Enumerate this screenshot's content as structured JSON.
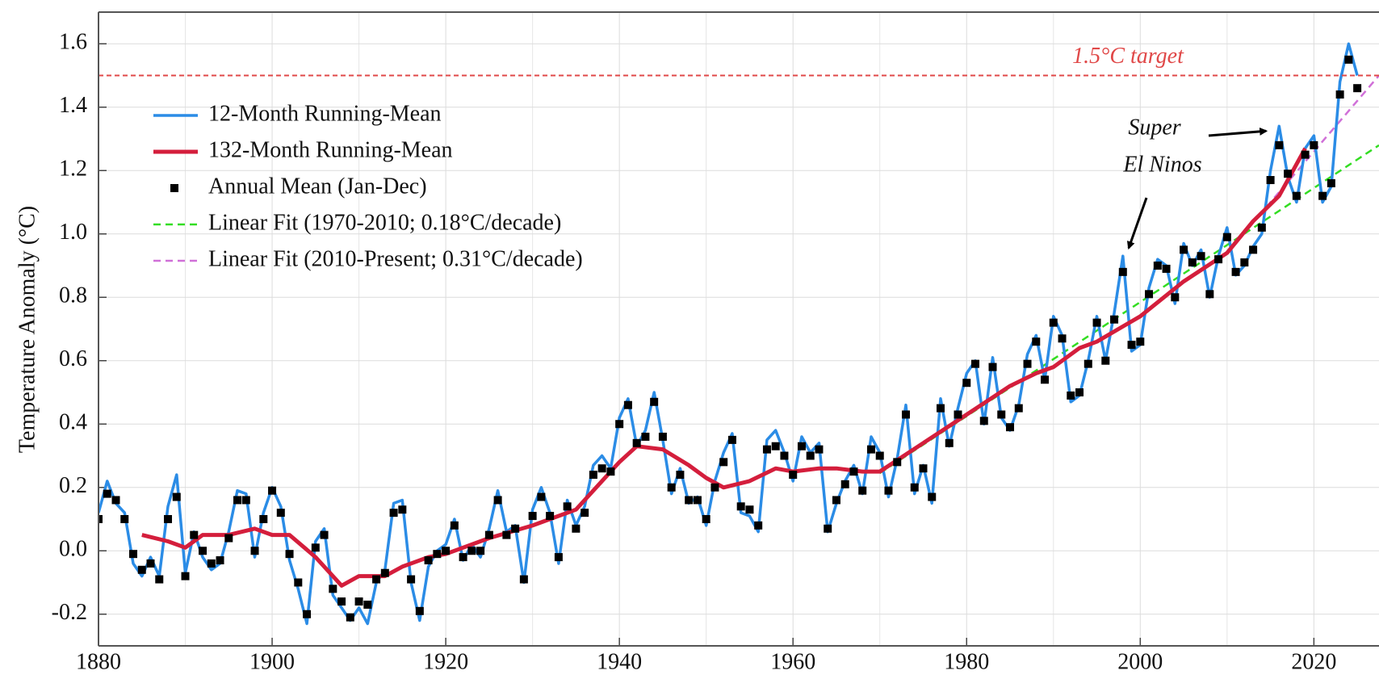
{
  "chart_data": {
    "type": "line",
    "y_label": "Temperature Anomaly (°C)",
    "xlim": [
      1880,
      2027.5
    ],
    "ylim": [
      -0.3,
      1.7
    ],
    "xticks": [
      1880,
      1900,
      1920,
      1940,
      1960,
      1980,
      2000,
      2020
    ],
    "x_minor_ticks": [
      1890,
      1910,
      1930,
      1950,
      1970,
      1990,
      2010
    ],
    "yticks": [
      -0.2,
      {
        "value": 0,
        "label": "0.0"
      },
      0.2,
      0.4,
      0.6,
      0.8,
      {
        "value": 1,
        "label": "1.0"
      },
      1.2,
      1.4,
      1.6
    ],
    "grid": true,
    "x": [
      1880,
      1881,
      1882,
      1883,
      1884,
      1885,
      1886,
      1887,
      1888,
      1889,
      1890,
      1891,
      1892,
      1893,
      1894,
      1895,
      1896,
      1897,
      1898,
      1899,
      1900,
      1901,
      1902,
      1903,
      1904,
      1905,
      1906,
      1907,
      1908,
      1909,
      1910,
      1911,
      1912,
      1913,
      1914,
      1915,
      1916,
      1917,
      1918,
      1919,
      1920,
      1921,
      1922,
      1923,
      1924,
      1925,
      1926,
      1927,
      1928,
      1929,
      1930,
      1931,
      1932,
      1933,
      1934,
      1935,
      1936,
      1937,
      1938,
      1939,
      1940,
      1941,
      1942,
      1943,
      1944,
      1945,
      1946,
      1947,
      1948,
      1949,
      1950,
      1951,
      1952,
      1953,
      1954,
      1955,
      1956,
      1957,
      1958,
      1959,
      1960,
      1961,
      1962,
      1963,
      1964,
      1965,
      1966,
      1967,
      1968,
      1969,
      1970,
      1971,
      1972,
      1973,
      1974,
      1975,
      1976,
      1977,
      1978,
      1979,
      1980,
      1981,
      1982,
      1983,
      1984,
      1985,
      1986,
      1987,
      1988,
      1989,
      1990,
      1991,
      1992,
      1993,
      1994,
      1995,
      1996,
      1997,
      1998,
      1999,
      2000,
      2001,
      2002,
      2003,
      2004,
      2005,
      2006,
      2007,
      2008,
      2009,
      2010,
      2011,
      2012,
      2013,
      2014,
      2015,
      2016,
      2017,
      2018,
      2019,
      2020,
      2021,
      2022,
      2023,
      2024,
      2025
    ],
    "series": [
      {
        "name": "12-Month Running-Mean",
        "style": "line",
        "color": "#2b8ce6",
        "values": [
          0.12,
          0.22,
          0.15,
          0.12,
          -0.04,
          -0.08,
          -0.02,
          -0.08,
          0.14,
          0.24,
          -0.07,
          0.06,
          -0.02,
          -0.06,
          -0.04,
          0.06,
          0.19,
          0.18,
          -0.02,
          0.12,
          0.2,
          0.14,
          -0.03,
          -0.12,
          -0.23,
          0.03,
          0.07,
          -0.14,
          -0.18,
          -0.22,
          -0.18,
          -0.23,
          -0.1,
          -0.06,
          0.15,
          0.16,
          -0.1,
          -0.22,
          -0.05,
          0.0,
          0.02,
          0.1,
          -0.03,
          0.02,
          -0.02,
          0.07,
          0.19,
          0.06,
          0.08,
          -0.1,
          0.13,
          0.2,
          0.12,
          -0.04,
          0.16,
          0.08,
          0.14,
          0.27,
          0.3,
          0.26,
          0.42,
          0.48,
          0.33,
          0.38,
          0.5,
          0.35,
          0.18,
          0.26,
          0.15,
          0.17,
          0.08,
          0.22,
          0.31,
          0.37,
          0.12,
          0.11,
          0.06,
          0.35,
          0.38,
          0.31,
          0.22,
          0.36,
          0.31,
          0.34,
          0.06,
          0.15,
          0.22,
          0.27,
          0.18,
          0.36,
          0.31,
          0.17,
          0.29,
          0.46,
          0.18,
          0.27,
          0.15,
          0.48,
          0.33,
          0.45,
          0.56,
          0.6,
          0.4,
          0.61,
          0.42,
          0.38,
          0.46,
          0.62,
          0.68,
          0.54,
          0.74,
          0.68,
          0.47,
          0.49,
          0.6,
          0.74,
          0.6,
          0.75,
          0.93,
          0.63,
          0.65,
          0.83,
          0.92,
          0.9,
          0.78,
          0.97,
          0.9,
          0.95,
          0.8,
          0.93,
          1.02,
          0.87,
          0.9,
          0.96,
          1.0,
          1.2,
          1.34,
          1.18,
          1.1,
          1.27,
          1.31,
          1.1,
          1.15,
          1.48,
          1.6,
          1.5
        ]
      },
      {
        "name": "132-Month Running-Mean",
        "style": "line",
        "color": "#d41e3c",
        "width": 5,
        "x": [
          1885,
          1888,
          1890,
          1892,
          1895,
          1898,
          1900,
          1902,
          1905,
          1908,
          1910,
          1913,
          1915,
          1918,
          1920,
          1925,
          1930,
          1935,
          1938,
          1940,
          1942,
          1945,
          1948,
          1950,
          1952,
          1955,
          1958,
          1960,
          1963,
          1965,
          1968,
          1970,
          1975,
          1980,
          1985,
          1988,
          1990,
          1993,
          1995,
          2000,
          2005,
          2010,
          2013,
          2016,
          2019
        ],
        "values": [
          0.05,
          0.03,
          0.01,
          0.05,
          0.05,
          0.07,
          0.05,
          0.05,
          -0.02,
          -0.11,
          -0.08,
          -0.08,
          -0.05,
          -0.02,
          -0.01,
          0.04,
          0.08,
          0.13,
          0.22,
          0.28,
          0.33,
          0.32,
          0.27,
          0.23,
          0.2,
          0.22,
          0.26,
          0.25,
          0.26,
          0.26,
          0.25,
          0.25,
          0.34,
          0.43,
          0.52,
          0.56,
          0.58,
          0.64,
          0.66,
          0.74,
          0.85,
          0.94,
          1.04,
          1.12,
          1.27
        ]
      },
      {
        "name": "Annual Mean (Jan-Dec)",
        "style": "markers",
        "color": "#000000",
        "values": [
          0.1,
          0.18,
          0.16,
          0.1,
          -0.01,
          -0.06,
          -0.04,
          -0.09,
          0.1,
          0.17,
          -0.08,
          0.05,
          0.0,
          -0.04,
          -0.03,
          0.04,
          0.16,
          0.16,
          0.0,
          0.1,
          0.19,
          0.12,
          -0.01,
          -0.1,
          -0.2,
          0.01,
          0.05,
          -0.12,
          -0.16,
          -0.21,
          -0.16,
          -0.17,
          -0.09,
          -0.07,
          0.12,
          0.13,
          -0.09,
          -0.19,
          -0.03,
          -0.01,
          0.0,
          0.08,
          -0.02,
          0.0,
          0.0,
          0.05,
          0.16,
          0.05,
          0.07,
          -0.09,
          0.11,
          0.17,
          0.11,
          -0.02,
          0.14,
          0.07,
          0.12,
          0.24,
          0.26,
          0.25,
          0.4,
          0.46,
          0.34,
          0.36,
          0.47,
          0.36,
          0.2,
          0.24,
          0.16,
          0.16,
          0.1,
          0.2,
          0.28,
          0.35,
          0.14,
          0.13,
          0.08,
          0.32,
          0.33,
          0.3,
          0.24,
          0.33,
          0.3,
          0.32,
          0.07,
          0.16,
          0.21,
          0.25,
          0.19,
          0.32,
          0.3,
          0.19,
          0.28,
          0.43,
          0.2,
          0.26,
          0.17,
          0.45,
          0.34,
          0.43,
          0.53,
          0.59,
          0.41,
          0.58,
          0.43,
          0.39,
          0.45,
          0.59,
          0.66,
          0.54,
          0.72,
          0.67,
          0.49,
          0.5,
          0.59,
          0.72,
          0.6,
          0.73,
          0.88,
          0.65,
          0.66,
          0.81,
          0.9,
          0.89,
          0.8,
          0.95,
          0.91,
          0.93,
          0.81,
          0.92,
          0.99,
          0.88,
          0.91,
          0.95,
          1.02,
          1.17,
          1.28,
          1.19,
          1.12,
          1.25,
          1.28,
          1.12,
          1.16,
          1.44,
          1.55,
          1.46
        ]
      },
      {
        "name": "Linear Fit (1970-2010; 0.18°C/decade)",
        "style": "dashed",
        "color": "#33dd22",
        "x": [
          1970,
          2027.5
        ],
        "values": [
          0.245,
          1.28
        ]
      },
      {
        "name": "Linear Fit (2010-Present; 0.31°C/decade)",
        "style": "dashed",
        "color": "#d070d8",
        "x": [
          2010,
          2027.5
        ],
        "values": [
          0.94,
          1.5
        ]
      }
    ],
    "reference_line": {
      "value": 1.5,
      "label": "1.5°C target",
      "color": "#e04848"
    },
    "annotation": {
      "lines": [
        "Super",
        "El Ninos"
      ],
      "targets": [
        [
          1998.3,
          0.93
        ],
        [
          2015.8,
          1.33
        ]
      ]
    },
    "legend": "upper left"
  }
}
